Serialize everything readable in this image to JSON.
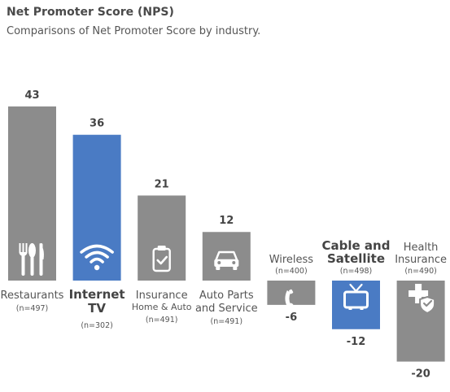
{
  "chart_data": {
    "type": "bar",
    "title": "Net Promoter Score (NPS)",
    "subtitle": "Comparisons of Net Promoter Score by industry.",
    "ylim": [
      -20,
      43
    ],
    "bars": [
      {
        "label": [
          "Restaurants"
        ],
        "sublabel": "",
        "n": "(n=497)",
        "value": 43,
        "value_text": "43",
        "highlight": false,
        "icon": "fork-knife-icon"
      },
      {
        "label": [
          "Internet",
          "TV"
        ],
        "sublabel": "",
        "n": "(n=302)",
        "value": 36,
        "value_text": "36",
        "highlight": true,
        "icon": "wifi-icon"
      },
      {
        "label": [
          "Insurance"
        ],
        "sublabel": "Home & Auto",
        "n": "(n=491)",
        "value": 21,
        "value_text": "21",
        "highlight": false,
        "icon": "clipboard-check-icon"
      },
      {
        "label": [
          "Auto Parts",
          "and Service"
        ],
        "sublabel": "",
        "n": "(n=491)",
        "value": 12,
        "value_text": "12",
        "highlight": false,
        "icon": "car-icon"
      },
      {
        "label": [
          "Wireless"
        ],
        "sublabel": "",
        "n": "(n=400)",
        "value": -6,
        "value_text": "-6",
        "highlight": false,
        "icon": "phone-icon"
      },
      {
        "label": [
          "Cable and",
          "Satellite"
        ],
        "sublabel": "",
        "n": "(n=498)",
        "value": -12,
        "value_text": "-12",
        "highlight": true,
        "icon": "tv-icon"
      },
      {
        "label": [
          "Health",
          "Insurance"
        ],
        "sublabel": "",
        "n": "(n=490)",
        "value": -20,
        "value_text": "-20",
        "highlight": false,
        "icon": "health-shield-icon"
      }
    ],
    "colors": {
      "default": "#8c8c8c",
      "highlight": "#4a7bc4"
    }
  }
}
